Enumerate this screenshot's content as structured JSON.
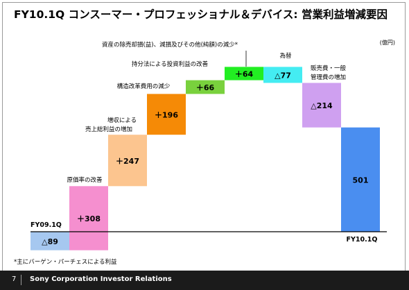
{
  "page": {
    "title": "FY10.1Q コンスーマー・プロフェッショナル＆デバイス: 営業利益増減要因",
    "unit": "(億円)",
    "footnote": "*主にバーゲン・パーチェスによる利益",
    "footer": {
      "page_number": "7",
      "organization": "Sony Corporation Investor Relations"
    }
  },
  "chart_data": {
    "type": "waterfall",
    "y_unit": "億円",
    "baseline": 0,
    "bars": [
      {
        "category": "FY09.1Q",
        "label": "",
        "value": -89,
        "display": "△89",
        "kind": "total",
        "color": "#a6c8f0",
        "label_color": "#000000"
      },
      {
        "category": "",
        "label": "原価率の改善",
        "value": 308,
        "display": "＋308",
        "kind": "delta",
        "color": "#f58fcf",
        "label_color": "#000000"
      },
      {
        "category": "",
        "label": "増収による\n売上総利益の増加",
        "value": 247,
        "display": "＋247",
        "kind": "delta",
        "color": "#fcc58f",
        "label_color": "#000000"
      },
      {
        "category": "",
        "label": "構造改革費用の減少",
        "value": 196,
        "display": "＋196",
        "kind": "delta",
        "color": "#f58a06",
        "label_color": "#000000"
      },
      {
        "category": "",
        "label": "持分法による投資利益の改善",
        "value": 66,
        "display": "＋66",
        "kind": "delta",
        "color": "#79d13d",
        "label_color": "#000000"
      },
      {
        "category": "",
        "label": "資産の除売却損(益)、減損及びその他(純額)の減少*",
        "value": 64,
        "display": "＋64",
        "kind": "delta",
        "color": "#22ee22",
        "label_color": "#000000"
      },
      {
        "category": "",
        "label": "為替",
        "value": -77,
        "display": "△77",
        "kind": "delta",
        "color": "#44ecf2",
        "label_color": "#000000"
      },
      {
        "category": "",
        "label": "販売費・一般\n管理費の増加",
        "value": -214,
        "display": "△214",
        "kind": "delta",
        "color": "#cfa0f0",
        "label_color": "#000000"
      },
      {
        "category": "FY10.1Q",
        "label": "",
        "value": 501,
        "display": "501",
        "kind": "total",
        "color": "#4a8ef0",
        "label_color": "#000000"
      }
    ]
  }
}
